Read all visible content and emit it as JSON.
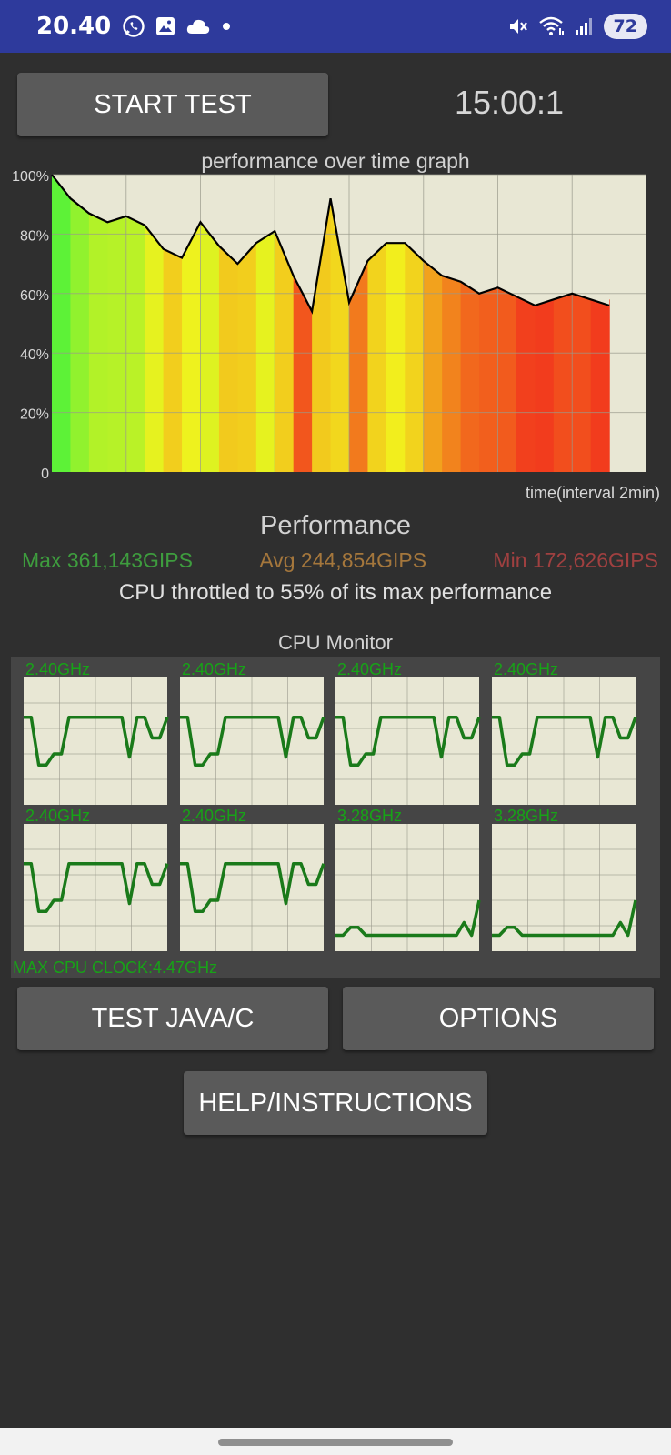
{
  "status_bar": {
    "time": "20.40",
    "battery": "72",
    "icons": [
      "whatsapp-icon",
      "gallery-icon",
      "cloud-icon",
      "dot-icon",
      "mute-icon",
      "wifi-icon",
      "signal-icon"
    ]
  },
  "controls": {
    "start_label": "START TEST",
    "timer": "15:00:1",
    "test_java_label": "TEST JAVA/C",
    "options_label": "OPTIONS",
    "help_label": "HELP/INSTRUCTIONS"
  },
  "performance": {
    "title": "Performance",
    "max": "Max 361,143GIPS",
    "avg": "Avg 244,854GIPS",
    "min": "Min 172,626GIPS",
    "throttle_text": "CPU throttled to 55% of its max performance"
  },
  "chart_data": [
    {
      "type": "area",
      "title": "performance over time graph",
      "xlabel": "time(interval 2min)",
      "ylabel": "",
      "ylim": [
        0,
        100
      ],
      "yticks": [
        "0",
        "20%",
        "40%",
        "60%",
        "80%",
        "100%"
      ],
      "grid": true,
      "x_minutes": [
        0,
        1,
        2,
        3,
        4,
        5,
        6,
        7,
        8,
        9,
        10,
        11,
        12,
        13,
        14,
        15,
        16,
        17,
        18,
        19,
        20,
        21,
        22,
        23,
        24,
        25,
        26,
        27,
        28,
        29,
        30
      ],
      "values": [
        100,
        92,
        87,
        84,
        86,
        83,
        75,
        72,
        84,
        76,
        70,
        77,
        81,
        66,
        54,
        92,
        57,
        71,
        77,
        77,
        71,
        66,
        64,
        60,
        62,
        59,
        56,
        58,
        60,
        58,
        56
      ],
      "colors": {
        "line": "#000000",
        "background": "#e8e7d4",
        "grid": "#9a9a8c",
        "high": "#3df23d",
        "mid": "#f2f21d",
        "low": "#f22a1d"
      }
    },
    {
      "type": "line",
      "title": "CPU Monitor",
      "cores": [
        {
          "label": "2.40GHz",
          "values": [
            55,
            55,
            25,
            25,
            32,
            32,
            55,
            55,
            55,
            55,
            55,
            55,
            55,
            55,
            30,
            55,
            55,
            42,
            42,
            55
          ]
        },
        {
          "label": "2.40GHz",
          "values": [
            55,
            55,
            25,
            25,
            32,
            32,
            55,
            55,
            55,
            55,
            55,
            55,
            55,
            55,
            30,
            55,
            55,
            42,
            42,
            55
          ]
        },
        {
          "label": "2.40GHz",
          "values": [
            55,
            55,
            25,
            25,
            32,
            32,
            55,
            55,
            55,
            55,
            55,
            55,
            55,
            55,
            30,
            55,
            55,
            42,
            42,
            55
          ]
        },
        {
          "label": "2.40GHz",
          "values": [
            55,
            55,
            25,
            25,
            32,
            32,
            55,
            55,
            55,
            55,
            55,
            55,
            55,
            55,
            30,
            55,
            55,
            42,
            42,
            55
          ]
        },
        {
          "label": "2.40GHz",
          "values": [
            55,
            55,
            25,
            25,
            32,
            32,
            55,
            55,
            55,
            55,
            55,
            55,
            55,
            55,
            30,
            55,
            55,
            42,
            42,
            55
          ]
        },
        {
          "label": "2.40GHz",
          "values": [
            55,
            55,
            25,
            25,
            32,
            32,
            55,
            55,
            55,
            55,
            55,
            55,
            55,
            55,
            30,
            55,
            55,
            42,
            42,
            55
          ]
        },
        {
          "label": "3.28GHz",
          "values": [
            10,
            10,
            15,
            15,
            10,
            10,
            10,
            10,
            10,
            10,
            10,
            10,
            10,
            10,
            10,
            10,
            10,
            18,
            10,
            32
          ]
        },
        {
          "label": "3.28GHz",
          "values": [
            10,
            10,
            15,
            15,
            10,
            10,
            10,
            10,
            10,
            10,
            10,
            10,
            10,
            10,
            10,
            10,
            10,
            18,
            10,
            32
          ]
        }
      ],
      "ylim": [
        0,
        80
      ],
      "max_clock": "MAX CPU CLOCK:4.47GHz",
      "colors": {
        "line": "#1a7a1a",
        "background": "#e8e7d4",
        "grid": "#9a9a8c",
        "label": "#17a317"
      }
    }
  ]
}
